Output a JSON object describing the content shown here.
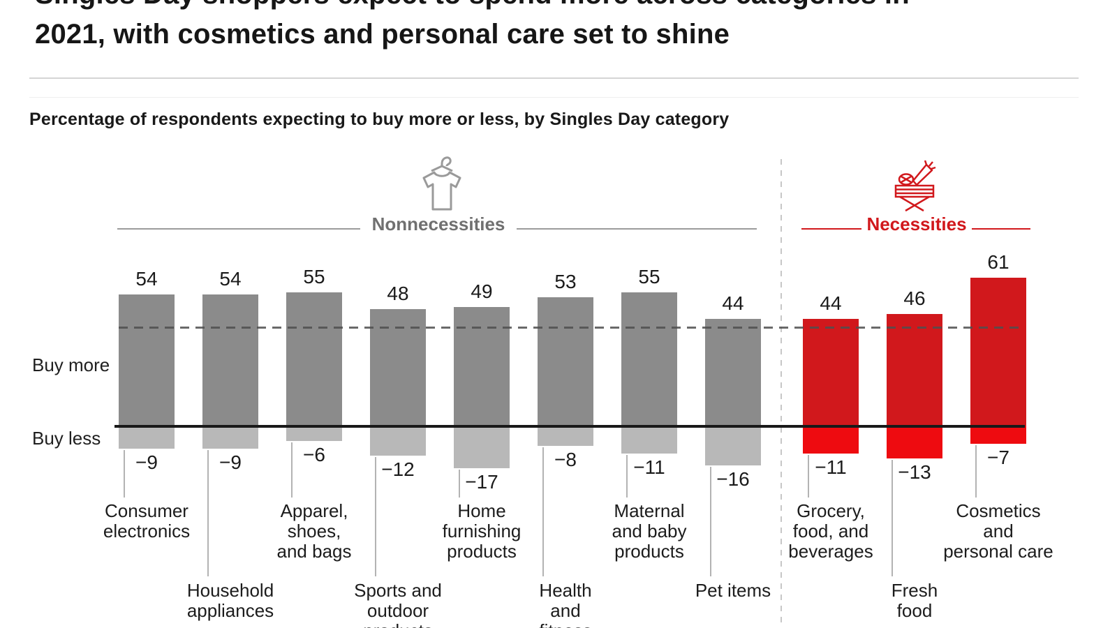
{
  "page": {
    "background": "#ffffff"
  },
  "title": {
    "line1": "Singles Day shoppers expect to spend more across categories in",
    "line2": "2021, with cosmetics and personal care set to shine"
  },
  "subtitle": "Percentage of respondents expecting to buy more or less, by Singles Day category",
  "axis_labels": {
    "more": "Buy more",
    "less": "Buy less"
  },
  "groups": {
    "nonnecessities": {
      "label": "Nonnecessities",
      "icon": "tshirt-on-hanger-icon",
      "text_color": "#707070",
      "line_color": "#9b9b9b",
      "bar_color": "#8b8b8b",
      "neg_bar_color": "#b8b8b8"
    },
    "necessities": {
      "label": "Necessities",
      "icon": "grocery-crate-icon",
      "text_color": "#d1181c",
      "line_color": "#d1181c",
      "bar_color": "#d1181c",
      "neg_bar_color": "#ee0b10"
    }
  },
  "chart_data": {
    "type": "bar",
    "title": "Percentage of respondents expecting to buy more or less, by Singles Day category",
    "units": "% of respondents",
    "ylabel": "",
    "xlabel": "",
    "baseline_value": 0,
    "grid": false,
    "reference_line": {
      "style": "dashed",
      "value": 41
    },
    "categories": [
      {
        "label": "Consumer electronics",
        "label_lines": [
          "Consumer",
          "electronics"
        ],
        "group": "nonnecessities",
        "buy_more": 54,
        "buy_less": -9,
        "label_row": "upper"
      },
      {
        "label": "Household appliances",
        "label_lines": [
          "Household",
          "appliances"
        ],
        "group": "nonnecessities",
        "buy_more": 54,
        "buy_less": -9,
        "label_row": "lower"
      },
      {
        "label": "Apparel, shoes, and bags",
        "label_lines": [
          "Apparel,",
          "shoes,",
          "and bags"
        ],
        "group": "nonnecessities",
        "buy_more": 55,
        "buy_less": -6,
        "label_row": "upper"
      },
      {
        "label": "Sports and outdoor products",
        "label_lines": [
          "Sports and",
          "outdoor",
          "products"
        ],
        "group": "nonnecessities",
        "buy_more": 48,
        "buy_less": -12,
        "label_row": "lower"
      },
      {
        "label": "Home furnishing products",
        "label_lines": [
          "Home",
          "furnishing",
          "products"
        ],
        "group": "nonnecessities",
        "buy_more": 49,
        "buy_less": -17,
        "label_row": "upper"
      },
      {
        "label": "Health and fitness",
        "label_lines": [
          "Health",
          "and",
          "fitness"
        ],
        "group": "nonnecessities",
        "buy_more": 53,
        "buy_less": -8,
        "label_row": "lower"
      },
      {
        "label": "Maternal and baby products",
        "label_lines": [
          "Maternal",
          "and baby",
          "products"
        ],
        "group": "nonnecessities",
        "buy_more": 55,
        "buy_less": -11,
        "label_row": "upper"
      },
      {
        "label": "Pet items",
        "label_lines": [
          "Pet items"
        ],
        "group": "nonnecessities",
        "buy_more": 44,
        "buy_less": -16,
        "label_row": "lower"
      },
      {
        "label": "Grocery, food, and beverages",
        "label_lines": [
          "Grocery,",
          "food, and",
          "beverages"
        ],
        "group": "necessities",
        "buy_more": 44,
        "buy_less": -11,
        "label_row": "upper"
      },
      {
        "label": "Fresh food",
        "label_lines": [
          "Fresh",
          "food"
        ],
        "group": "necessities",
        "buy_more": 46,
        "buy_less": -13,
        "label_row": "lower"
      },
      {
        "label": "Cosmetics and personal care",
        "label_lines": [
          "Cosmetics",
          "and",
          "personal care"
        ],
        "group": "necessities",
        "buy_more": 61,
        "buy_less": -7,
        "label_row": "upper"
      }
    ]
  }
}
